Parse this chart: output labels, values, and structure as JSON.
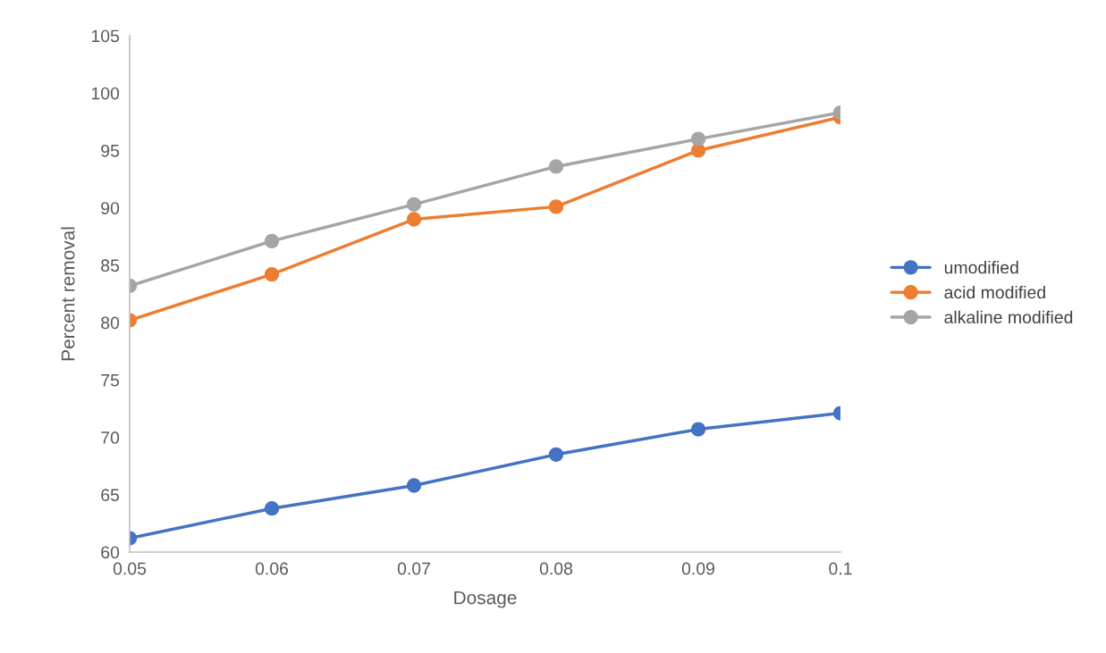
{
  "chart_data": {
    "type": "line",
    "xlabel": "Dosage",
    "ylabel": "Percent removal",
    "x": [
      0.05,
      0.06,
      0.07,
      0.08,
      0.09,
      0.1
    ],
    "series": [
      {
        "name": "umodified",
        "color": "#4472c4",
        "values": [
          61.2,
          63.8,
          65.8,
          68.5,
          70.7,
          72.1
        ]
      },
      {
        "name": "acid modified",
        "color": "#ed7d31",
        "values": [
          80.2,
          84.2,
          89.0,
          90.1,
          95.0,
          97.9
        ]
      },
      {
        "name": "alkaline modified",
        "color": "#a5a5a5",
        "values": [
          83.2,
          87.1,
          90.3,
          93.6,
          96.0,
          98.3
        ]
      }
    ],
    "xlim": [
      0.05,
      0.1
    ],
    "xticks": [
      0.05,
      0.06,
      0.07,
      0.08,
      0.09,
      0.1
    ],
    "ylim": [
      60,
      105
    ],
    "yticks": [
      60,
      65,
      70,
      75,
      80,
      85,
      90,
      95,
      100,
      105
    ],
    "grid": false,
    "legend": "right",
    "marker": "circle",
    "line_style": "solid"
  }
}
